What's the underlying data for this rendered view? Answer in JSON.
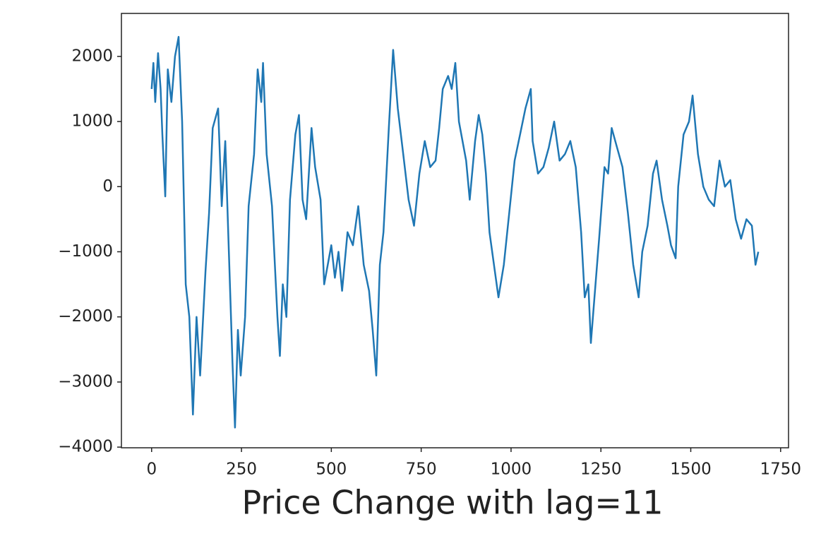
{
  "chart_data": {
    "type": "line",
    "x_label": "Price Change with lag=11",
    "color": "#1f77b4",
    "grid": false,
    "xlim": [
      -84,
      1772
    ],
    "ylim": [
      -4010,
      2660
    ],
    "xticks": [
      0,
      250,
      500,
      750,
      1000,
      1250,
      1500,
      1750
    ],
    "yticks": [
      {
        "value": -4000,
        "label": "−4000"
      },
      {
        "value": -3000,
        "label": "−3000"
      },
      {
        "value": -2000,
        "label": "−2000"
      },
      {
        "value": -1000,
        "label": "−1000"
      },
      0,
      1000,
      2000
    ],
    "x": [
      0,
      5,
      10,
      18,
      25,
      30,
      38,
      45,
      55,
      65,
      75,
      85,
      95,
      105,
      115,
      125,
      135,
      150,
      160,
      170,
      185,
      195,
      205,
      215,
      225,
      232,
      240,
      248,
      260,
      270,
      285,
      295,
      305,
      310,
      320,
      335,
      350,
      357,
      365,
      375,
      385,
      400,
      410,
      420,
      430,
      445,
      455,
      470,
      480,
      490,
      500,
      510,
      520,
      530,
      545,
      560,
      575,
      590,
      605,
      615,
      625,
      635,
      645,
      660,
      672,
      685,
      700,
      715,
      730,
      745,
      760,
      775,
      790,
      800,
      810,
      825,
      835,
      845,
      855,
      875,
      885,
      900,
      910,
      920,
      930,
      940,
      955,
      965,
      980,
      995,
      1010,
      1025,
      1040,
      1055,
      1060,
      1075,
      1090,
      1105,
      1120,
      1135,
      1150,
      1165,
      1180,
      1195,
      1205,
      1215,
      1222,
      1232,
      1245,
      1260,
      1270,
      1280,
      1295,
      1310,
      1325,
      1340,
      1355,
      1365,
      1380,
      1395,
      1405,
      1420,
      1435,
      1445,
      1458,
      1465,
      1480,
      1495,
      1505,
      1520,
      1535,
      1550,
      1565,
      1580,
      1595,
      1610,
      1625,
      1640,
      1655,
      1670,
      1680,
      1688
    ],
    "values": [
      1500,
      1900,
      1300,
      2050,
      1500,
      800,
      -150,
      1800,
      1300,
      2000,
      2300,
      1000,
      -1500,
      -2000,
      -3500,
      -2000,
      -2900,
      -1300,
      -400,
      900,
      1200,
      -300,
      700,
      -1000,
      -2700,
      -3700,
      -2200,
      -2900,
      -2000,
      -300,
      500,
      1800,
      1300,
      1900,
      500,
      -300,
      -2000,
      -2600,
      -1500,
      -2000,
      -200,
      800,
      1100,
      -200,
      -500,
      900,
      300,
      -200,
      -1500,
      -1200,
      -900,
      -1400,
      -1000,
      -1600,
      -700,
      -900,
      -300,
      -1200,
      -1600,
      -2200,
      -2900,
      -1200,
      -700,
      900,
      2100,
      1200,
      500,
      -200,
      -600,
      200,
      700,
      300,
      400,
      900,
      1500,
      1700,
      1500,
      1900,
      1000,
      400,
      -200,
      700,
      1100,
      800,
      200,
      -700,
      -1300,
      -1700,
      -1200,
      -400,
      400,
      800,
      1200,
      1500,
      700,
      200,
      300,
      600,
      1000,
      400,
      500,
      700,
      300,
      -700,
      -1700,
      -1500,
      -2400,
      -1700,
      -800,
      300,
      200,
      900,
      600,
      300,
      -400,
      -1200,
      -1700,
      -1000,
      -600,
      200,
      400,
      -200,
      -600,
      -900,
      -1100,
      0,
      800,
      1000,
      1400,
      500,
      0,
      -200,
      -300,
      400,
      0,
      100,
      -500,
      -800,
      -500,
      -600,
      -1200,
      -1000
    ]
  }
}
